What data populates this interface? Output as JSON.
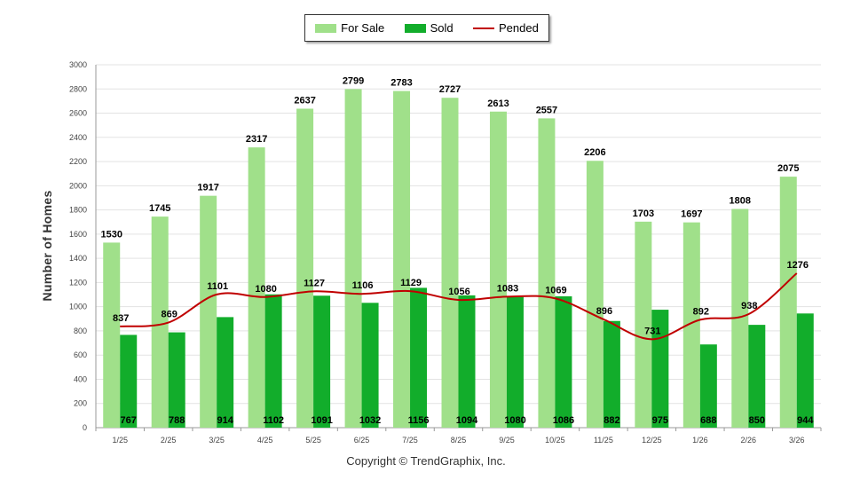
{
  "chart_data": {
    "type": "bar",
    "categories": [
      "1/25",
      "2/25",
      "3/25",
      "4/25",
      "5/25",
      "6/25",
      "7/25",
      "8/25",
      "9/25",
      "10/25",
      "11/25",
      "12/25",
      "1/26",
      "2/26",
      "3/26"
    ],
    "series": [
      {
        "name": "For Sale",
        "type": "bar",
        "color": "#a0e08a",
        "values": [
          1530,
          1745,
          1917,
          2317,
          2637,
          2799,
          2783,
          2727,
          2613,
          2557,
          2206,
          1703,
          1697,
          1808,
          2075
        ]
      },
      {
        "name": "Sold",
        "type": "bar",
        "color": "#12ad2b",
        "values": [
          767,
          788,
          914,
          1102,
          1091,
          1032,
          1156,
          1094,
          1080,
          1086,
          882,
          975,
          688,
          850,
          944
        ]
      },
      {
        "name": "Pended",
        "type": "line",
        "color": "#c00000",
        "values": [
          837,
          869,
          1101,
          1080,
          1127,
          1106,
          1129,
          1056,
          1083,
          1069,
          896,
          731,
          892,
          938,
          1276
        ]
      }
    ],
    "ylabel": "Number of Homes",
    "ylim": [
      0,
      3000
    ],
    "yticks": [
      0,
      200,
      400,
      600,
      800,
      1000,
      1200,
      1400,
      1600,
      1800,
      2000,
      2200,
      2400,
      2600,
      2800,
      3000
    ],
    "grid": true,
    "legend_position": "top-center"
  },
  "legend": {
    "for_sale": "For Sale",
    "sold": "Sold",
    "pended": "Pended"
  },
  "copyright": "Copyright © TrendGraphix, Inc."
}
